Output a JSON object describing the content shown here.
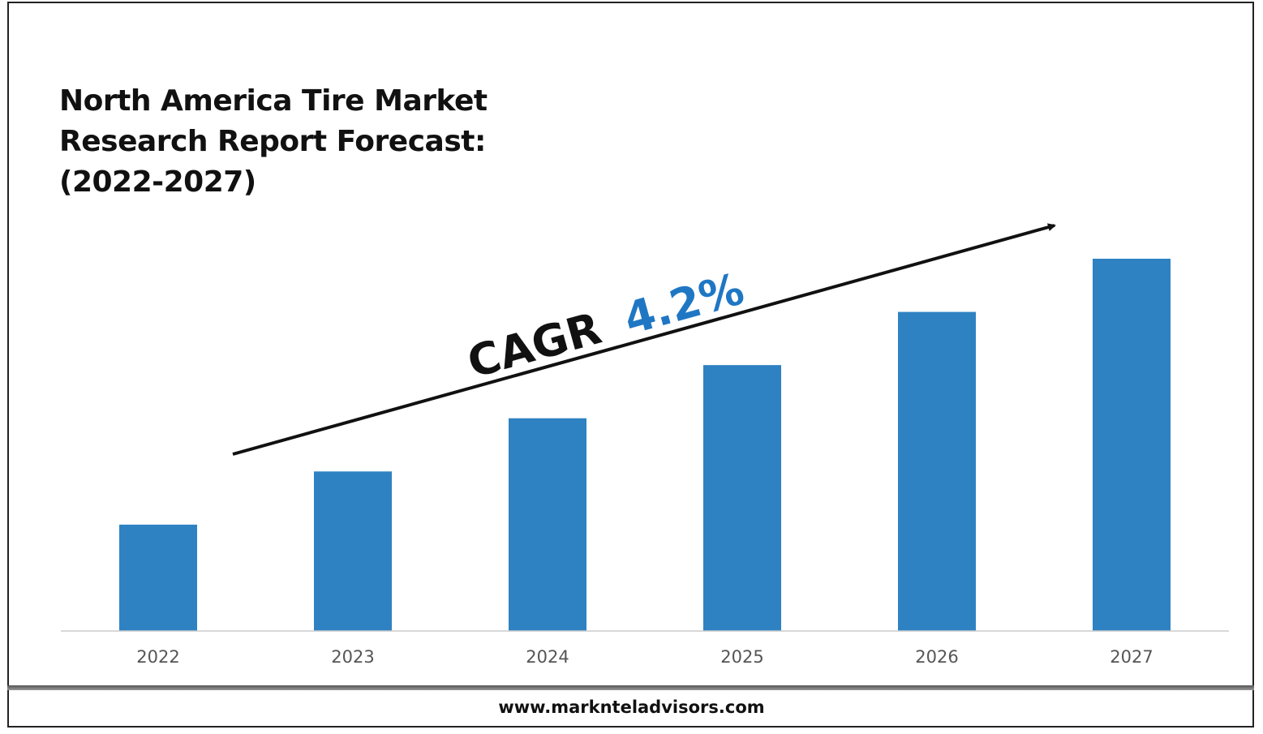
{
  "title_lines": [
    "North America Tire Market",
    "Research Report Forecast:",
    "(2022-2027)"
  ],
  "cagr": {
    "label": "CAGR",
    "value": "4.2%"
  },
  "website": "www.marknteladvisors.com",
  "colors": {
    "bar": "#2e82c2",
    "cagr_value": "#1f77c4",
    "text": "#111111",
    "axis": "#cccccc"
  },
  "chart_data": {
    "type": "bar",
    "title": "North America Tire Market Research Report Forecast: (2022-2027)",
    "categories": [
      "2022",
      "2023",
      "2024",
      "2025",
      "2026",
      "2027"
    ],
    "values": [
      1.0,
      1.5,
      2.0,
      2.5,
      3.0,
      3.5
    ],
    "ylim": [
      0,
      3.5
    ],
    "value_note": "relative bar heights; no value axis printed",
    "grid": false,
    "legend": "none",
    "annotation": "CAGR 4.2%"
  }
}
